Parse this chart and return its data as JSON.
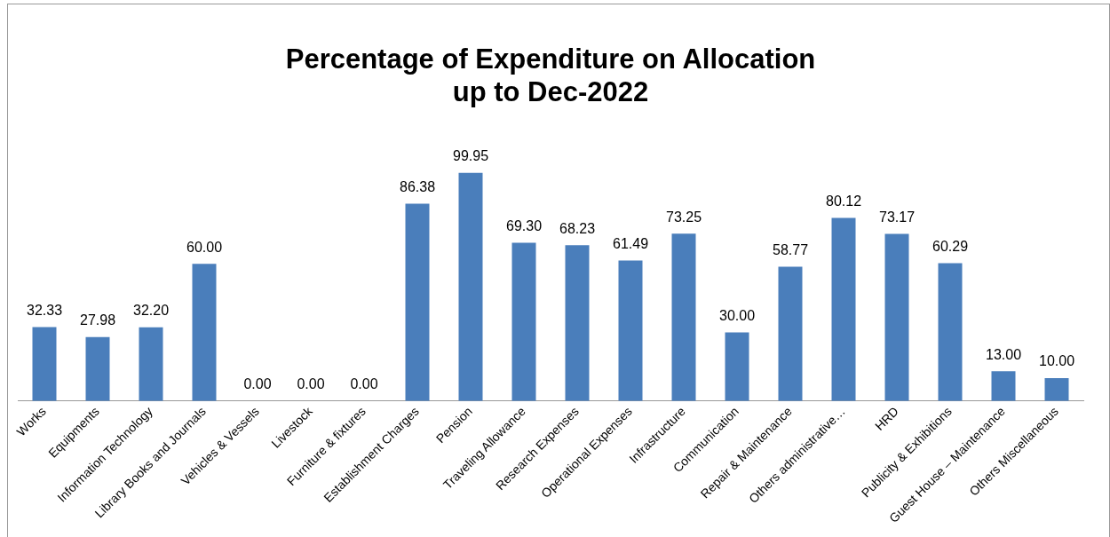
{
  "chart_data": {
    "type": "bar",
    "title": "Percentage of Expenditure on Allocation\nup to Dec-2022",
    "categories": [
      "Works",
      "Equipments",
      "Information Technology",
      "Library Books and Journals",
      "Vehicles & Vessels",
      "Livestock",
      "Furniture & fixtures",
      "Establishment Charges",
      "Pension",
      "Traveling Allowance",
      "Research Expenses",
      "Operational Expenses",
      "Infrastructure",
      "Communication",
      "Repair & Maintenance",
      "Others administrative…",
      "HRD",
      "Publicity & Exhibitions",
      "Guest House – Maintenance",
      "Others Miscellaneous"
    ],
    "values": [
      32.33,
      27.98,
      32.2,
      60,
      0,
      0,
      0,
      86.38,
      99.95,
      69.3,
      68.23,
      61.49,
      73.25,
      30,
      58.77,
      80.12,
      73.17,
      60.29,
      13,
      10
    ],
    "value_labels": [
      "32.33",
      "27.98",
      "32.20",
      "60.00",
      "0.00",
      "0.00",
      "0.00",
      "86.38",
      "99.95",
      "69.30",
      "68.23",
      "61.49",
      "73.25",
      "30.00",
      "58.77",
      "80.12",
      "73.17",
      "60.29",
      "13.00",
      "10.00"
    ],
    "color": "#4a7ebb",
    "ylim": [
      0,
      100
    ],
    "grid": false,
    "legend": false
  }
}
